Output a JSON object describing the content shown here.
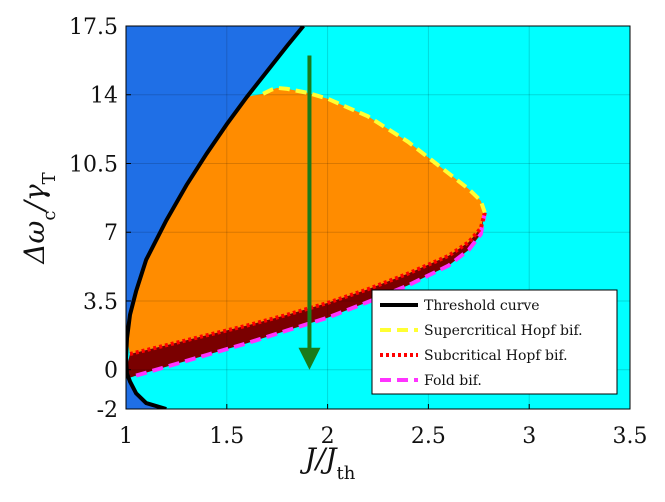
{
  "chart_data": {
    "type": "area",
    "title": "",
    "xlabel": {
      "main": "J/J",
      "sub": "th"
    },
    "ylabel": {
      "main": "Δω",
      "sub1": "c",
      "mid": "/γ",
      "sub2": "T"
    },
    "xlim": [
      1,
      3.5
    ],
    "ylim": [
      -2,
      17.5
    ],
    "xticks": [
      "1",
      "1.5",
      "2",
      "2.5",
      "3",
      "3.5"
    ],
    "yticks": [
      "-2",
      "0",
      "3.5",
      "7",
      "10.5",
      "14",
      "17.5"
    ],
    "grid": true,
    "legend_position": "bottom-right",
    "colors": {
      "below_threshold": "#1f6fe6",
      "above_threshold": "#00ffff",
      "hopf_region": "#ff8c00",
      "bistable_region": "#7a0000",
      "threshold": "#000000",
      "supercritical": "#ffff33",
      "subcritical": "#ff0000",
      "fold": "#ff33ff",
      "arrow": "#1a7a1a"
    },
    "series": [
      {
        "name": "Threshold curve",
        "style": "solid",
        "x": [
          1.2,
          1.1,
          1.05,
          1.02,
          1.005,
          1.0,
          1.005,
          1.02,
          1.05,
          1.1,
          1.2,
          1.3,
          1.4,
          1.5,
          1.6,
          1.7,
          1.8,
          1.88
        ],
        "y": [
          -2.0,
          -1.7,
          -1.2,
          -0.6,
          -0.2,
          0.6,
          1.6,
          2.8,
          4.0,
          5.6,
          7.6,
          9.4,
          11.0,
          12.5,
          13.9,
          15.2,
          16.5,
          17.5
        ]
      },
      {
        "name": "Supercritical Hopf bif.",
        "style": "dashed",
        "x": [
          1.68,
          1.72,
          1.75,
          1.8,
          1.9,
          2.0,
          2.2,
          2.4,
          2.6,
          2.7,
          2.76,
          2.78
        ],
        "y": [
          14.05,
          14.25,
          14.35,
          14.3,
          14.1,
          13.8,
          12.9,
          11.6,
          10.0,
          9.2,
          8.6,
          8.0
        ]
      },
      {
        "name": "Subcritical Hopf bif.",
        "style": "dotted",
        "x": [
          1.02,
          1.2,
          1.4,
          1.6,
          1.8,
          2.0,
          2.2,
          2.4,
          2.6,
          2.7,
          2.76,
          2.78
        ],
        "y": [
          0.8,
          1.25,
          1.75,
          2.25,
          2.8,
          3.4,
          4.1,
          4.9,
          5.8,
          6.5,
          7.2,
          8.0
        ]
      },
      {
        "name": "Fold bif.",
        "style": "dashed",
        "x": [
          1.05,
          1.2,
          1.4,
          1.6,
          1.8,
          2.0,
          2.2,
          2.4,
          2.6,
          2.7,
          2.76,
          2.78
        ],
        "y": [
          -0.3,
          0.15,
          0.75,
          1.35,
          2.0,
          2.65,
          3.45,
          4.3,
          5.3,
          6.1,
          6.9,
          8.0
        ]
      }
    ],
    "annotation_arrow": {
      "x": 1.91,
      "y_start": 16.0,
      "y_end": 0.0
    }
  }
}
